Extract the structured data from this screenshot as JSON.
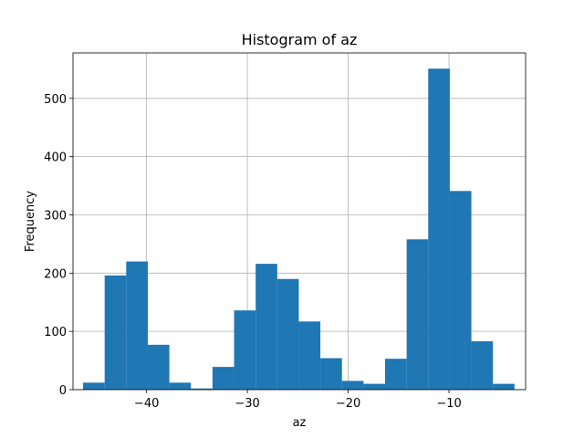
{
  "chart_data": {
    "type": "bar",
    "title": "Histogram of az",
    "xlabel": "az",
    "ylabel": "Frequency",
    "bar_color": "#1f77b4",
    "grid": true,
    "xlim": [
      -47.3,
      -2.4
    ],
    "ylim": [
      0,
      578
    ],
    "xticks": [
      -40,
      -30,
      -20,
      -10
    ],
    "xtick_labels": [
      "−40",
      "−30",
      "−20",
      "−10"
    ],
    "yticks": [
      0,
      100,
      200,
      300,
      400,
      500
    ],
    "ytick_labels": [
      "0",
      "100",
      "200",
      "300",
      "400",
      "500"
    ],
    "bin_edges": [
      -46.3,
      -44.16,
      -42.02,
      -39.88,
      -37.74,
      -35.6,
      -33.46,
      -31.32,
      -29.18,
      -27.04,
      -24.9,
      -22.76,
      -20.62,
      -18.48,
      -16.34,
      -14.2,
      -12.06,
      -9.92,
      -7.78,
      -5.64,
      -3.5
    ],
    "values": [
      12,
      196,
      220,
      77,
      12,
      2,
      39,
      136,
      216,
      190,
      117,
      54,
      15,
      10,
      53,
      258,
      551,
      341,
      83,
      10
    ]
  }
}
